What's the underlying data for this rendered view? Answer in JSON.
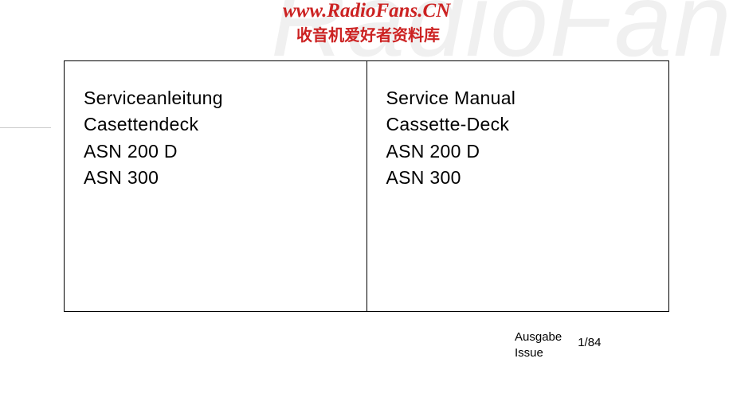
{
  "watermark": {
    "background_text": "RadioFans",
    "url": "www.RadioFans.CN",
    "chinese_text": "收音机爱好者资料库",
    "bg_color": "#f0f0f0",
    "text_color": "#cc2222"
  },
  "document": {
    "border_color": "#000000",
    "text_color": "#000000",
    "font_size": 23,
    "left_panel": {
      "line1": "Serviceanleitung",
      "line2": "Casettendeck",
      "line3": "ASN 200 D",
      "line4": "ASN 300"
    },
    "right_panel": {
      "line1": "Service Manual",
      "line2": "Cassette-Deck",
      "line3": "ASN 200 D",
      "line4": "ASN 300"
    }
  },
  "issue": {
    "label_de": "Ausgabe",
    "label_en": "Issue",
    "value": "1/84",
    "font_size": 15
  },
  "background_color": "#ffffff"
}
